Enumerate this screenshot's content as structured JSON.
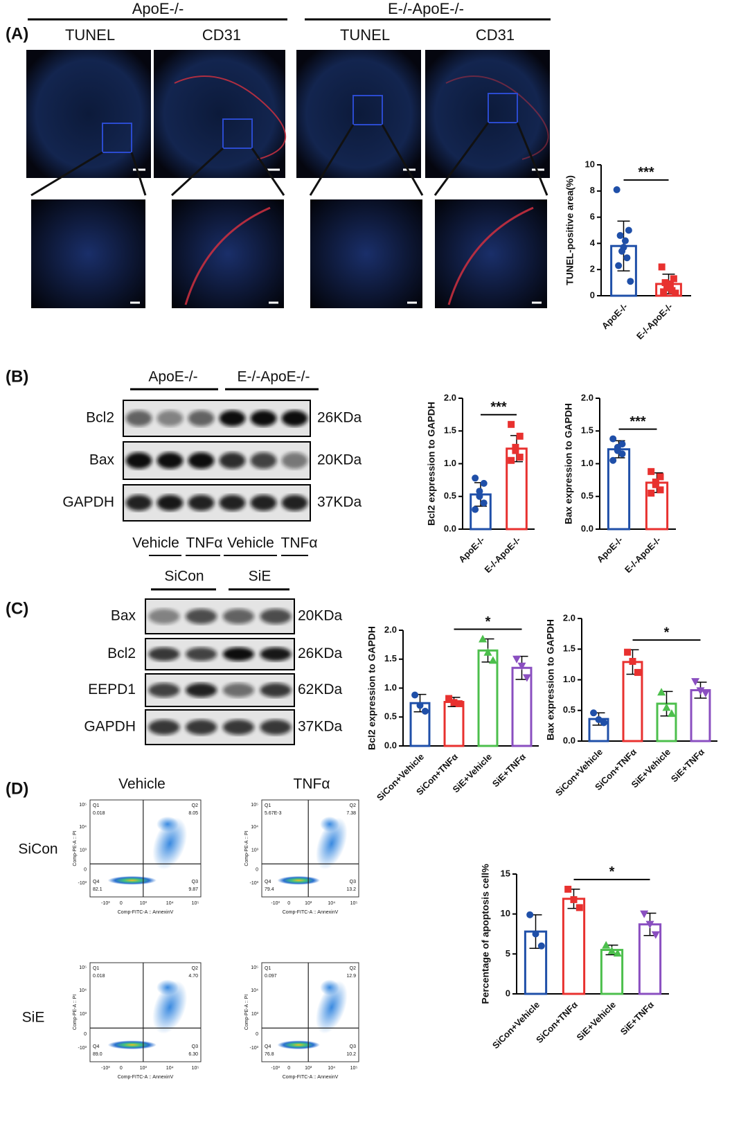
{
  "panel_labels": [
    "(A)",
    "(B)",
    "(C)",
    "(D)"
  ],
  "panel_a": {
    "groups": [
      "ApoE-/-",
      "E-/-ApoE-/-"
    ],
    "stains": [
      "TUNEL",
      "CD31",
      "TUNEL",
      "CD31"
    ]
  },
  "panel_b": {
    "groups": [
      "ApoE-/-",
      "E-/-ApoE-/-"
    ],
    "blots": [
      {
        "protein": "Bcl2",
        "size": "26KDa"
      },
      {
        "protein": "Bax",
        "size": "20KDa"
      },
      {
        "protein": "GAPDH",
        "size": "37KDa"
      }
    ]
  },
  "panel_c": {
    "treatments": [
      "Vehicle",
      "TNFα",
      "Vehicle",
      "TNFα"
    ],
    "groups": [
      "SiCon",
      "SiE"
    ],
    "blots": [
      {
        "protein": "Bax",
        "size": "20KDa"
      },
      {
        "protein": "Bcl2",
        "size": "26KDa"
      },
      {
        "protein": "EEPD1",
        "size": "62KDa"
      },
      {
        "protein": "GAPDH",
        "size": "37KDa"
      }
    ]
  },
  "panel_d": {
    "columns": [
      "Vehicle",
      "TNFα"
    ],
    "rows": [
      "SiCon",
      "SiE"
    ],
    "x_label": "Comp-FITC-A :: AnnexinV",
    "y_label": "Comp-PE-A :: PI",
    "ticks": [
      "-10³",
      "0",
      "10³",
      "10⁴",
      "10⁵"
    ],
    "quadrants": [
      "Q1",
      "Q2",
      "Q3",
      "Q4"
    ],
    "plots": [
      [
        "0.018",
        "8.05",
        "9.87",
        "82.1"
      ],
      [
        "5.67E-3",
        "7.38",
        "13.2",
        "79.4"
      ],
      [
        "0.018",
        "4.70",
        "6.30",
        "89.0"
      ],
      [
        "0.097",
        "12.9",
        "10.2",
        "76.8"
      ]
    ]
  },
  "chart_data": [
    {
      "type": "bar",
      "y_label": "TUNEL-positive area(%)",
      "significance": "***",
      "categories": [
        "ApoE-/-",
        "E-/-ApoE-/-"
      ],
      "colors": [
        "#1f4fa8",
        "#e8312f"
      ],
      "values": [
        3.8,
        0.9
      ],
      "errors": [
        1.9,
        0.75
      ],
      "points": [
        [
          8.1,
          5.0,
          4.6,
          4.2,
          3.7,
          3.4,
          2.9,
          2.3,
          1.1
        ],
        [
          2.2,
          1.3,
          1.0,
          0.9,
          0.8,
          0.6,
          0.4,
          0.3,
          0.2
        ]
      ],
      "ylim": [
        0,
        10
      ],
      "yticks": [
        0,
        2,
        4,
        6,
        8,
        10
      ]
    },
    {
      "type": "bar",
      "y_label": "Bcl2 expression to GAPDH",
      "significance": "***",
      "categories": [
        "ApoE-/-",
        "E-/-ApoE-/-"
      ],
      "colors": [
        "#1f4fa8",
        "#e8312f"
      ],
      "values": [
        0.53,
        1.23
      ],
      "errors": [
        0.18,
        0.2
      ],
      "points": [
        [
          0.78,
          0.7,
          0.58,
          0.5,
          0.4,
          0.3
        ],
        [
          1.6,
          1.42,
          1.25,
          1.2,
          1.1,
          1.05
        ]
      ],
      "ylim": [
        0,
        2
      ],
      "yticks": [
        {
          "value": 0,
          "label": "0.0"
        },
        {
          "value": 0.5,
          "label": "0.5"
        },
        {
          "value": 1,
          "label": "1.0"
        },
        {
          "value": 1.5,
          "label": "1.5"
        },
        {
          "value": 2,
          "label": "2.0"
        }
      ]
    },
    {
      "type": "bar",
      "y_label": "Bax expression to GAPDH",
      "significance": "***",
      "categories": [
        "ApoE-/-",
        "E-/-ApoE-/-"
      ],
      "colors": [
        "#1f4fa8",
        "#e8312f"
      ],
      "values": [
        1.22,
        0.71
      ],
      "errors": [
        0.13,
        0.15
      ],
      "points": [
        [
          1.38,
          1.3,
          1.25,
          1.2,
          1.15,
          1.05
        ],
        [
          0.88,
          0.8,
          0.72,
          0.68,
          0.6,
          0.55
        ]
      ],
      "ylim": [
        0,
        2
      ],
      "yticks": [
        {
          "value": 0,
          "label": "0.0"
        },
        {
          "value": 0.5,
          "label": "0.5"
        },
        {
          "value": 1,
          "label": "1.0"
        },
        {
          "value": 1.5,
          "label": "1.5"
        },
        {
          "value": 2,
          "label": "2.0"
        }
      ]
    },
    {
      "type": "bar",
      "y_label": "Bcl2 expression to GAPDH",
      "significance": "*",
      "categories": [
        "SiCon+Vehicle",
        "SiCon+TNFα",
        "SiE+Vehicle",
        "SiE+TNFα"
      ],
      "colors": [
        "#1f4fa8",
        "#e8312f",
        "#4cbf4c",
        "#8a4fc0"
      ],
      "values": [
        0.74,
        0.76,
        1.65,
        1.35
      ],
      "errors": [
        0.15,
        0.08,
        0.2,
        0.2
      ],
      "points": [
        [
          0.88,
          0.7,
          0.6
        ],
        [
          0.82,
          0.75,
          0.73
        ],
        [
          1.85,
          1.62,
          1.48
        ],
        [
          1.5,
          1.38,
          1.18
        ]
      ],
      "ylim": [
        0,
        2
      ],
      "yticks": [
        {
          "value": 0,
          "label": "0.0"
        },
        {
          "value": 0.5,
          "label": "0.5"
        },
        {
          "value": 1,
          "label": "1.0"
        },
        {
          "value": 1.5,
          "label": "1.5"
        },
        {
          "value": 2,
          "label": "2.0"
        }
      ]
    },
    {
      "type": "bar",
      "y_label": "Bax expression to GAPDH",
      "significance": "*",
      "categories": [
        "SiCon+Vehicle",
        "SiCon+TNFα",
        "SiE+Vehicle",
        "SiE+TNFα"
      ],
      "colors": [
        "#1f4fa8",
        "#e8312f",
        "#4cbf4c",
        "#8a4fc0"
      ],
      "values": [
        0.36,
        1.29,
        0.61,
        0.83
      ],
      "errors": [
        0.1,
        0.2,
        0.2,
        0.13
      ],
      "points": [
        [
          0.46,
          0.35,
          0.3
        ],
        [
          1.45,
          1.3,
          1.12
        ],
        [
          0.8,
          0.55,
          0.45
        ],
        [
          0.97,
          0.82,
          0.78
        ]
      ],
      "ylim": [
        0,
        2
      ],
      "yticks": [
        {
          "value": 0,
          "label": "0.0"
        },
        {
          "value": 0.5,
          "label": "0.5"
        },
        {
          "value": 1,
          "label": "1.0"
        },
        {
          "value": 1.5,
          "label": "1.5"
        },
        {
          "value": 2,
          "label": "2.0"
        }
      ]
    },
    {
      "type": "bar",
      "y_label": "Percentage of apoptosis cell%",
      "significance": "*",
      "categories": [
        "SiCon+Vehicle",
        "SiCon+TNFα",
        "SiE+Vehicle",
        "SiE+TNFα"
      ],
      "colors": [
        "#1f4fa8",
        "#e8312f",
        "#4cbf4c",
        "#8a4fc0"
      ],
      "values": [
        7.8,
        11.9,
        5.5,
        8.7
      ],
      "errors": [
        2.1,
        1.2,
        0.6,
        1.4
      ],
      "points": [
        [
          9.9,
          7.5,
          6.0
        ],
        [
          13.1,
          11.8,
          10.8
        ],
        [
          6.1,
          5.4,
          5.1
        ],
        [
          10.0,
          8.7,
          7.4
        ]
      ],
      "ylim": [
        0,
        15
      ],
      "yticks": [
        0,
        5,
        10,
        15
      ]
    }
  ]
}
